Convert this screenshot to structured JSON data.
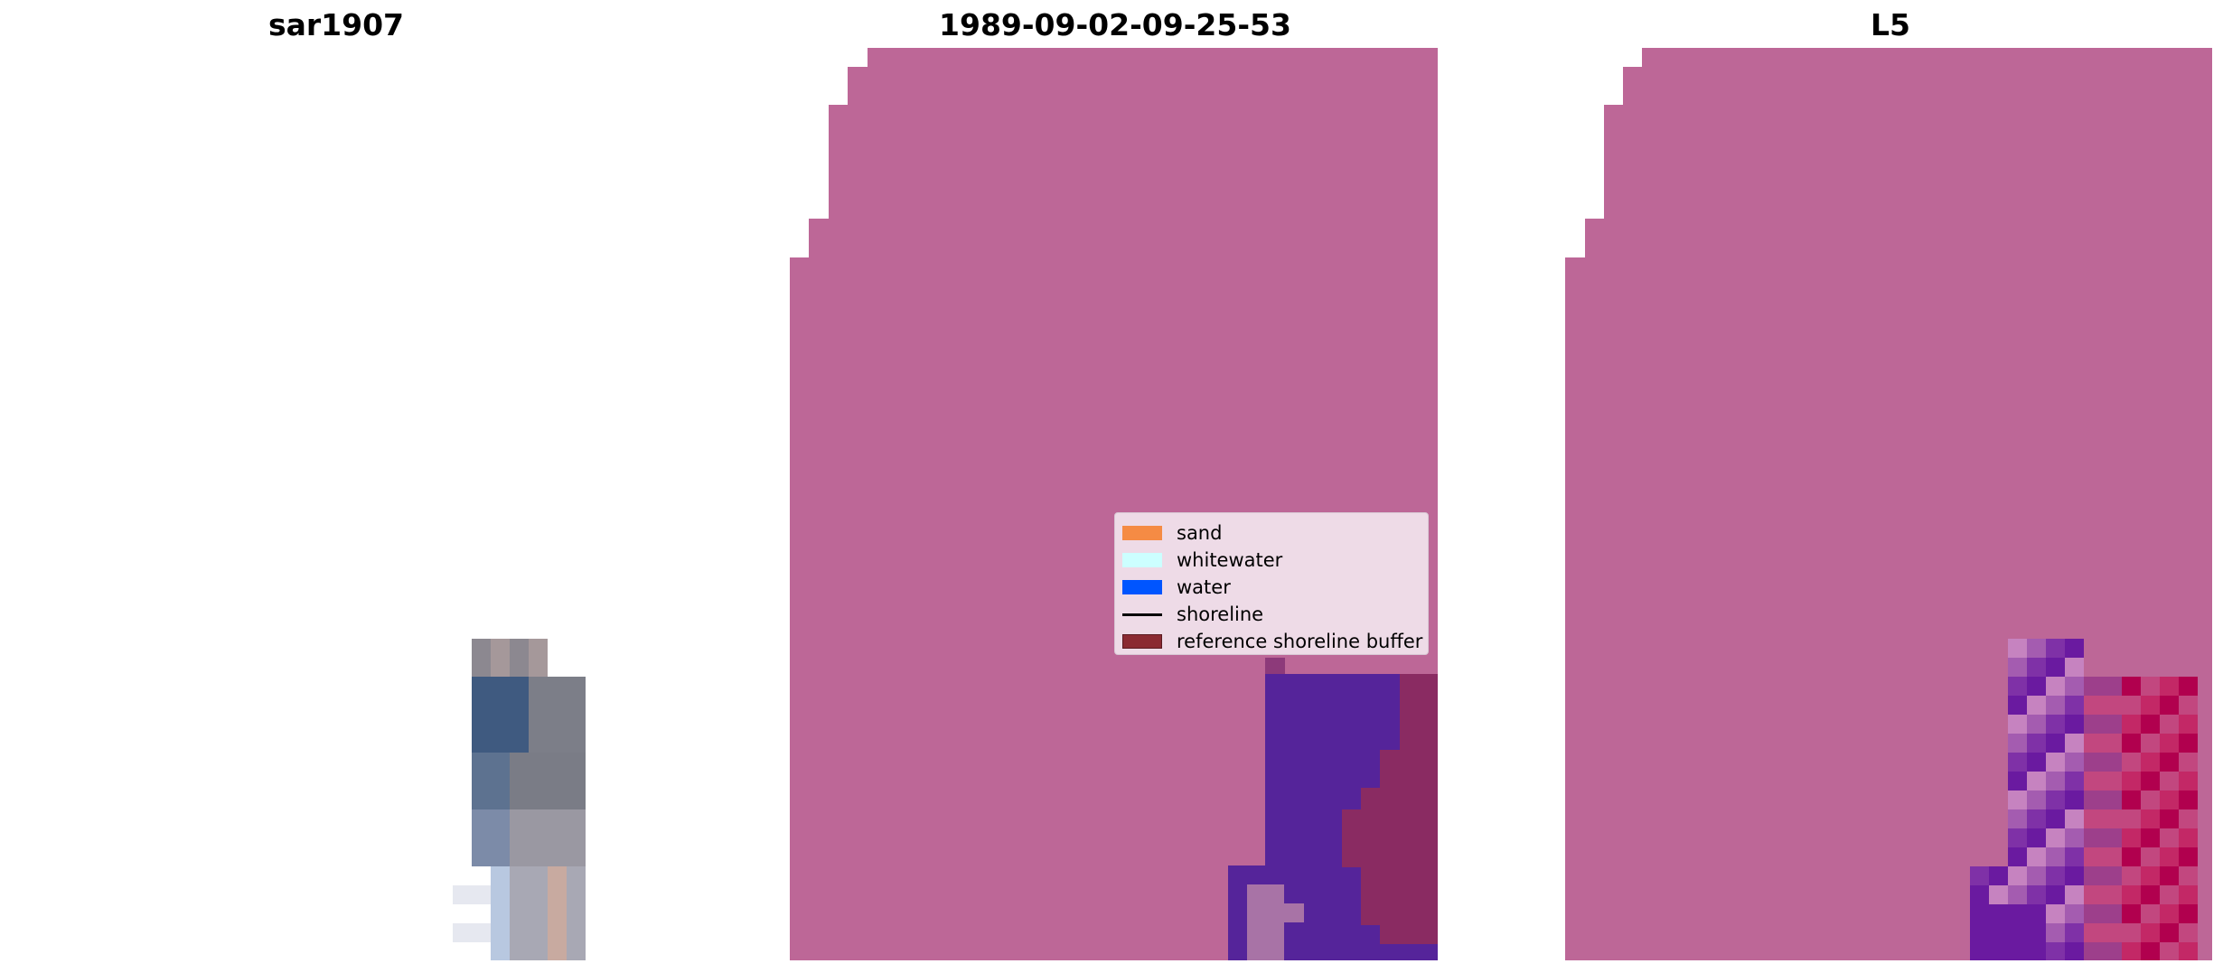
{
  "titles": {
    "left": "sar1907",
    "middle": "1989-09-02-09-25-53",
    "right": "L5"
  },
  "legend": {
    "items": [
      {
        "label": "sand",
        "color": "#f58b44",
        "kind": "patch"
      },
      {
        "label": "whitewater",
        "color": "#ccffff",
        "kind": "patch"
      },
      {
        "label": "water",
        "color": "#0055ff",
        "kind": "patch"
      },
      {
        "label": "shoreline",
        "color": "#000000",
        "kind": "line"
      },
      {
        "label": "reference shoreline buffer",
        "color": "#8b2a32",
        "kind": "patch"
      }
    ]
  },
  "colors": {
    "background": "#ffffff",
    "mask": "#bd6797",
    "water_class": "#55249a",
    "buffer_overlay": "#8a2b62",
    "sand_on_mask": "#b07aa8"
  }
}
